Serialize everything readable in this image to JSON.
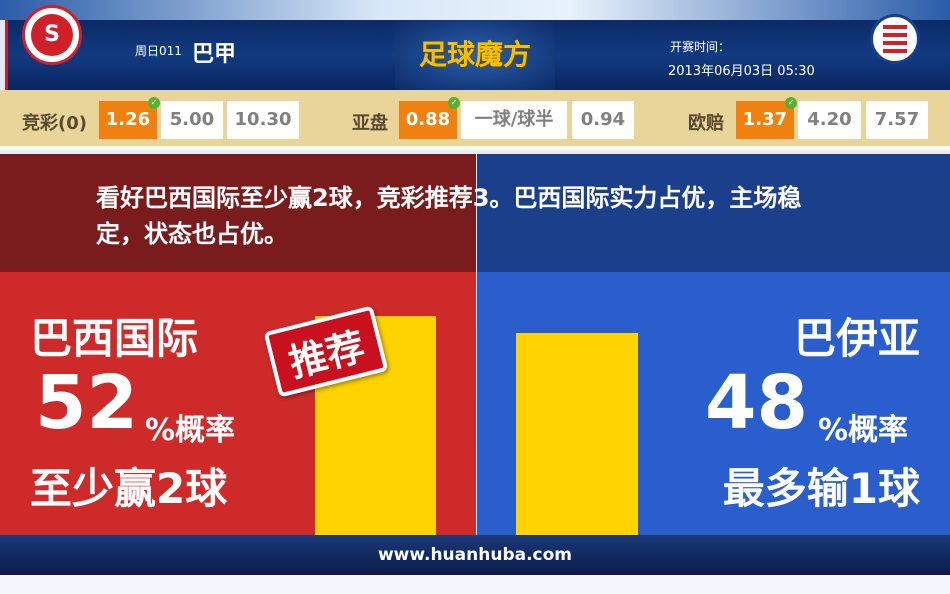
{
  "header": {
    "week": "周日011",
    "league": "巴甲",
    "brand": "足球魔方",
    "time_label": "开赛时间：",
    "time": "2013年06月03日 05:30",
    "home_logo_text": "S",
    "away_stars": "★★"
  },
  "odds": {
    "jingcai": {
      "label": "竞彩(0)",
      "values": [
        "1.26",
        "5.00",
        "10.30"
      ],
      "selected": 0
    },
    "yapan": {
      "label": "亚盘",
      "values": [
        "0.88",
        "一球/球半",
        "0.94"
      ],
      "selected": 0
    },
    "oupei": {
      "label": "欧赔",
      "values": [
        "1.37",
        "4.20",
        "7.57"
      ],
      "selected": 0
    }
  },
  "comment": "看好巴西国际至少赢2球，竞彩推荐3。巴西国际实力占优，主场稳定，状态也占优。",
  "home": {
    "name": "巴西国际",
    "pct": "52",
    "pct_suffix": "%概率",
    "prediction": "至少赢2球",
    "stamp": "推荐",
    "probability": 52
  },
  "away": {
    "name": "巴伊亚",
    "pct": "48",
    "pct_suffix": "%概率",
    "prediction": "最多输1球",
    "probability": 48
  },
  "colors": {
    "home": "#cf2a2a",
    "away": "#2a5ecc",
    "bar": "#fed300",
    "selected_odds": "#f08010"
  },
  "footer": "www.huanhuba.com"
}
